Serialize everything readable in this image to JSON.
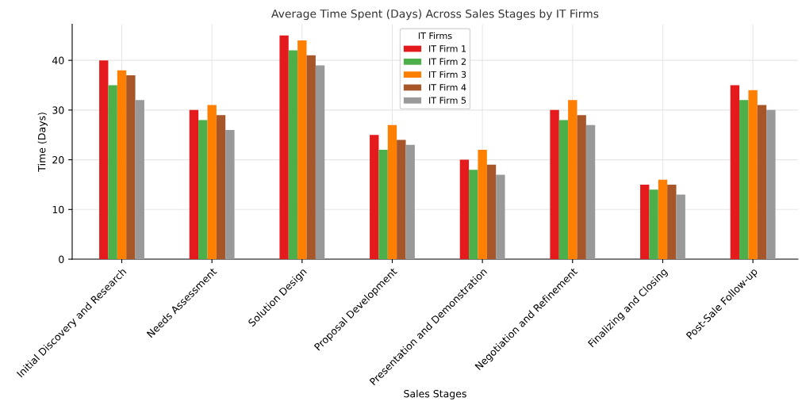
{
  "chart_data": {
    "type": "bar",
    "title": "Average Time Spent (Days) Across Sales Stages by IT Firms",
    "xlabel": "Sales Stages",
    "ylabel": "Time (Days)",
    "legend_title": "IT Firms",
    "categories": [
      "Initial Discovery and Research",
      "Needs Assessment",
      "Solution Design",
      "Proposal Development",
      "Presentation and Demonstration",
      "Negotiation and Refinement",
      "Finalizing and Closing",
      "Post-Sale Follow-up"
    ],
    "series": [
      {
        "name": "IT Firm 1",
        "color": "#e41a1c",
        "values": [
          40,
          30,
          45,
          25,
          20,
          30,
          15,
          35
        ]
      },
      {
        "name": "IT Firm 2",
        "color": "#4daf4a",
        "values": [
          35,
          28,
          42,
          22,
          18,
          28,
          14,
          32
        ]
      },
      {
        "name": "IT Firm 3",
        "color": "#ff7f00",
        "values": [
          38,
          31,
          44,
          27,
          22,
          32,
          16,
          34
        ]
      },
      {
        "name": "IT Firm 4",
        "color": "#a65628",
        "values": [
          37,
          29,
          41,
          24,
          19,
          29,
          15,
          31
        ]
      },
      {
        "name": "IT Firm 5",
        "color": "#999999",
        "values": [
          32,
          26,
          39,
          23,
          17,
          27,
          13,
          30
        ]
      }
    ],
    "ylim": [
      0,
      47.25
    ],
    "yticks": [
      0,
      10,
      20,
      30,
      40
    ],
    "grid": true,
    "legend": "top"
  }
}
